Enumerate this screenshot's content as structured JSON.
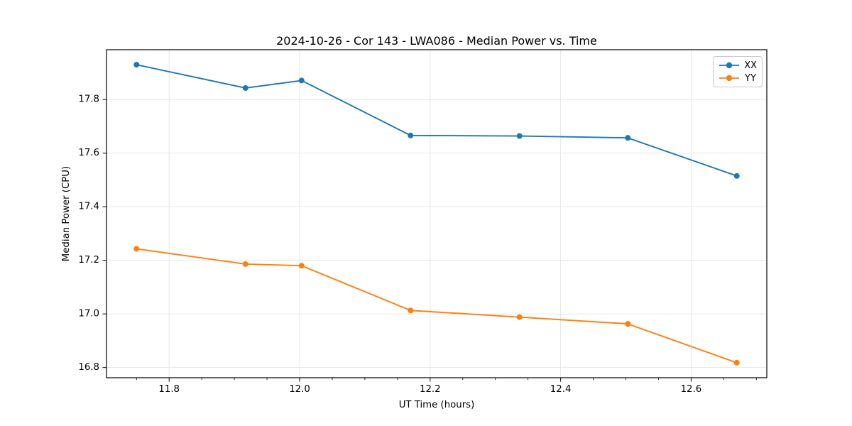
{
  "chart_data": {
    "type": "line",
    "title": "2024-10-26 - Cor 143 - LWA086 - Median Power vs. Time",
    "xlabel": "UT Time (hours)",
    "ylabel": "Median Power (CPU)",
    "x": [
      11.75,
      11.917,
      12.003,
      12.17,
      12.337,
      12.503,
      12.67
    ],
    "series": [
      {
        "name": "XX",
        "color": "#1f77b4",
        "values": [
          17.93,
          17.843,
          17.871,
          17.666,
          17.664,
          17.657,
          17.515
        ]
      },
      {
        "name": "YY",
        "color": "#ff7f0e",
        "values": [
          17.243,
          17.186,
          17.18,
          17.013,
          16.988,
          16.963,
          16.818
        ]
      }
    ],
    "xlim": [
      11.704,
      12.716
    ],
    "ylim": [
      16.762,
      17.986
    ],
    "xticks": [
      11.8,
      12.0,
      12.2,
      12.4,
      12.6
    ],
    "xtick_labels": [
      "11.8",
      "12.0",
      "12.2",
      "12.4",
      "12.6"
    ],
    "x_minor_start": 11.75,
    "x_minor_step": 0.05,
    "yticks": [
      16.8,
      17.0,
      17.2,
      17.4,
      17.6,
      17.8
    ],
    "ytick_labels": [
      "16.8",
      "17.0",
      "17.2",
      "17.4",
      "17.6",
      "17.8"
    ],
    "grid": true,
    "legend_position": "upper right",
    "marker": "circle",
    "marker_radius": 4
  },
  "colors": {
    "grid": "#e4e4e4",
    "spine": "#000000",
    "text": "#000000",
    "legend_border": "#c8c8c8"
  }
}
